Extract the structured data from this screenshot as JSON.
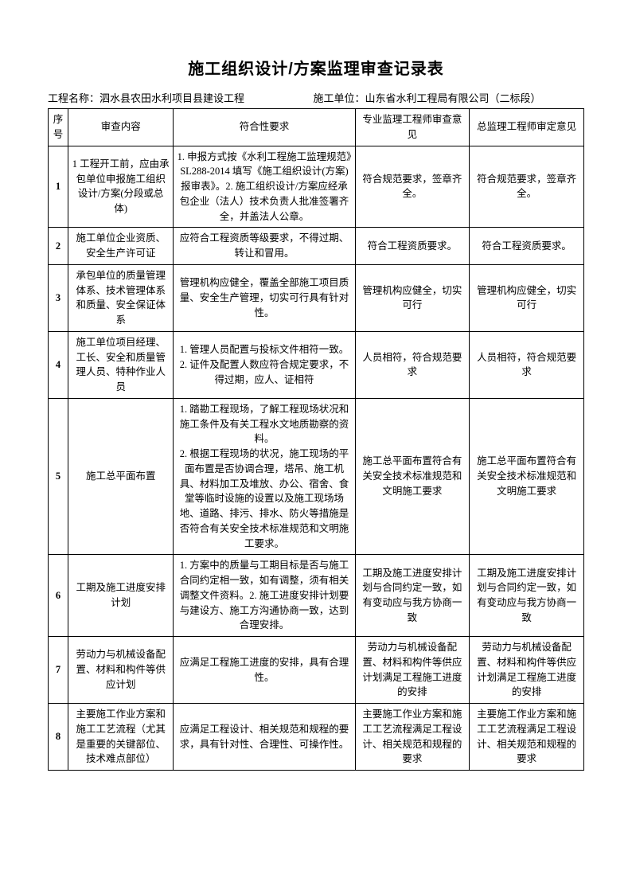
{
  "title": "施工组织设计/方案监理审查记录表",
  "meta": {
    "project_label": "工程名称：",
    "project_value": "泗水县农田水利项目县建设工程",
    "unit_label": "施工单位：",
    "unit_value": "山东省水利工程局有限公司（二标段）"
  },
  "columns": {
    "seq": "序号",
    "item": "审查内容",
    "req": "符合性要求",
    "op1": "专业监理工程师审查意见",
    "op2": "总监理工程师审定意见"
  },
  "rows": [
    {
      "seq": "1",
      "item": "1 工程开工前，应由承包单位申报施工组织设计/方案(分段或总体)",
      "req": "1. 申报方式按《水利工程施工监理规范》SL288-2014 填写《施工组织设计(方案)报审表》。2. 施工组织设计/方案应经承包企业（法人）技术负责人批准签署齐全，并盖法人公章。",
      "op1": "符合规范要求，签章齐全。",
      "op2": "符合规范要求，签章齐全。"
    },
    {
      "seq": "2",
      "item": "施工单位企业资质、安全生产许可证",
      "req": "应符合工程资质等级要求，不得过期、转让和冒用。",
      "op1": "符合工程资质要求。",
      "op2": "符合工程资质要求。"
    },
    {
      "seq": "3",
      "item": "承包单位的质量管理体系、技术管理体系和质量、安全保证体系",
      "req": "管理机构应健全，覆盖全部施工项目质量、安全生产管理，切实可行具有针对性。",
      "op1": "管理机构应健全，切实可行",
      "op2": "管理机构应健全，切实可行"
    },
    {
      "seq": "4",
      "item": "施工单位项目经理、工长、安全和质量管理人员、特种作业人员",
      "req": "1. 管理人员配置与投标文件相符一致。\n2. 证件及配置人数应符合规定要求，不得过期，应人、证相符",
      "op1": "人员相符，符合规范要求",
      "op2": "人员相符，符合规范要求"
    },
    {
      "seq": "5",
      "item": "施工总平面布置",
      "req": "1. 踏勘工程现场，了解工程现场状况和施工条件及有关工程水文地质勘察的资料。\n2. 根据工程现场的状况，施工现场的平面布置是否协调合理，塔吊、施工机具、材料加工及堆放、办公、宿舍、食堂等临时设施的设置以及施工现场场地、道路、排污、排水、防火等措施是否符合有关安全技术标准规范和文明施工要求。",
      "op1": "施工总平面布置符合有关安全技术标准规范和文明施工要求",
      "op2": "施工总平面布置符合有关安全技术标准规范和文明施工要求"
    },
    {
      "seq": "6",
      "item": "工期及施工进度安排计划",
      "req": "1. 方案中的质量与工期目标是否与施工合同约定相一致，如有调整，须有相关调整文件资料。2. 施工进度安排计划要与建设方、施工方沟通协商一致，达到合理安排。",
      "op1": "工期及施工进度安排计划与合同约定一致，如有变动应与我方协商一致",
      "op2": "工期及施工进度安排计划与合同约定一致，如有变动应与我方协商一致"
    },
    {
      "seq": "7",
      "item": "劳动力与机械设备配置、材料和构件等供应计划",
      "req": "应满足工程施工进度的安排，具有合理性。",
      "op1": "劳动力与机械设备配置、材料和构件等供应计划满足工程施工进度的安排",
      "op2": "劳动力与机械设备配置、材料和构件等供应计划满足工程施工进度的安排"
    },
    {
      "seq": "8",
      "item": "主要施工作业方案和施工工艺流程（尤其是重要的关键部位、技术难点部位）",
      "req": "应满足工程设计、相关规范和规程的要求，具有针对性、合理性、可操作性。",
      "op1": "主要施工作业方案和施工工艺流程满足工程设计、相关规范和规程的要求",
      "op2": "主要施工作业方案和施工工艺流程满足工程设计、相关规范和规程的要求"
    }
  ]
}
